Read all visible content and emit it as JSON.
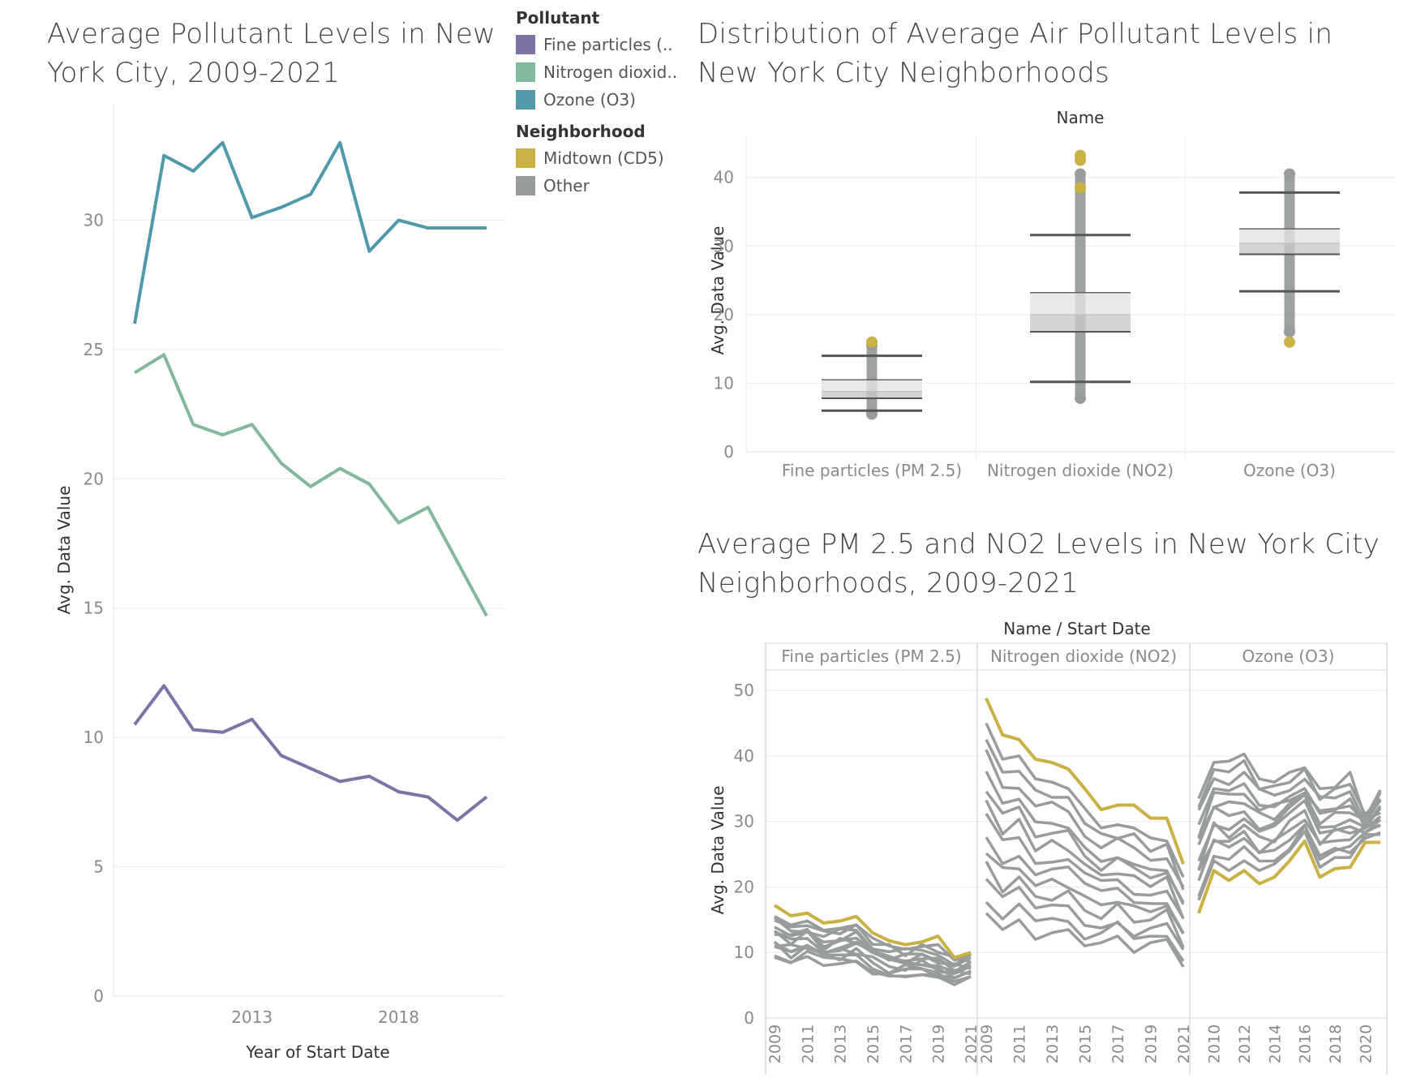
{
  "legend": {
    "pollutant_title": "Pollutant",
    "pollutant_items": [
      {
        "label": "Fine particles (..",
        "color": "#7f73a6"
      },
      {
        "label": "Nitrogen dioxid..",
        "color": "#82b99c"
      },
      {
        "label": "Ozone (O3)",
        "color": "#4f99ab"
      }
    ],
    "neighborhood_title": "Neighborhood",
    "neighborhood_items": [
      {
        "label": "Midtown (CD5)",
        "color": "#c9b143"
      },
      {
        "label": "Other",
        "color": "#999c9d"
      }
    ]
  },
  "chart_data": [
    {
      "type": "line",
      "title": "Average Pollutant Levels in New York City, 2009-2021",
      "xlabel": "Year of Start Date",
      "ylabel": "Avg. Data Value",
      "x": [
        2009,
        2010,
        2011,
        2012,
        2013,
        2014,
        2015,
        2016,
        2017,
        2018,
        2019,
        2020,
        2021
      ],
      "x_ticks": [
        "2013",
        "2018"
      ],
      "y_ticks": [
        "0",
        "5",
        "10",
        "15",
        "20",
        "25",
        "30"
      ],
      "ylim": [
        0,
        34.5
      ],
      "grid": true,
      "series": [
        {
          "name": "Ozone (O3)",
          "color": "#4f99ab",
          "values": [
            26.0,
            32.5,
            31.9,
            33.0,
            30.1,
            30.5,
            31.0,
            33.0,
            28.8,
            30.0,
            29.7,
            29.7,
            29.7
          ]
        },
        {
          "name": "Nitrogen dioxide (NO2)",
          "color": "#82b99c",
          "values": [
            24.1,
            24.8,
            22.1,
            21.7,
            22.1,
            20.6,
            19.7,
            20.4,
            19.8,
            18.3,
            18.9,
            16.8,
            14.7
          ]
        },
        {
          "name": "Fine particles (PM 2.5)",
          "color": "#7f73a6",
          "values": [
            10.5,
            12.0,
            10.3,
            10.2,
            10.7,
            9.3,
            8.8,
            8.3,
            8.5,
            7.9,
            7.7,
            6.8,
            7.7
          ]
        }
      ]
    },
    {
      "type": "box",
      "title": "Distribution of Average Air Pollutant Levels in New York City Neighborhoods",
      "xlabel": "Name",
      "ylabel": "Avg. Data Value",
      "categories": [
        "Fine particles (PM 2.5)",
        "Nitrogen dioxide (NO2)",
        "Ozone (O3)"
      ],
      "y_ticks": [
        "0",
        "10",
        "20",
        "30",
        "40"
      ],
      "ylim": [
        0,
        46
      ],
      "boxes": [
        {
          "whisker_low": 6.0,
          "q1": 7.8,
          "median": 8.8,
          "q3": 10.5,
          "whisker_high": 14.0,
          "min": 5.5,
          "max": 15.5,
          "midtown_points": [
            16.0
          ]
        },
        {
          "whisker_low": 10.2,
          "q1": 17.5,
          "median": 20.0,
          "q3": 23.2,
          "whisker_high": 31.6,
          "min": 7.8,
          "max": 40.5,
          "midtown_points": [
            43.2,
            42.5,
            38.5
          ]
        },
        {
          "whisker_low": 23.4,
          "q1": 28.8,
          "median": 30.4,
          "q3": 32.5,
          "whisker_high": 37.8,
          "min": 17.5,
          "max": 40.5,
          "midtown_points": [
            16.0
          ]
        }
      ]
    },
    {
      "type": "line",
      "title": "Average PM 2.5 and NO2 Levels in New York City Neighborhoods, 2009-2021",
      "header": "Name / Start Date",
      "ylabel": "Avg. Data Value",
      "y_ticks": [
        "0",
        "10",
        "20",
        "30",
        "40",
        "50"
      ],
      "ylim": [
        0,
        52
      ],
      "panels": [
        {
          "name": "Fine particles (PM 2.5)",
          "x": [
            2009,
            2010,
            2011,
            2012,
            2013,
            2014,
            2015,
            2016,
            2017,
            2018,
            2019,
            2020,
            2021
          ],
          "x_ticks": [
            "2009",
            "2011",
            "2013",
            "2015",
            "2017",
            "2019",
            "2021"
          ],
          "midtown": [
            17.2,
            15.6,
            16.0,
            14.5,
            14.8,
            15.5,
            13.0,
            11.8,
            11.2,
            11.6,
            12.5,
            9.2,
            10.0
          ],
          "others_high": [
            15.5,
            14.2,
            14.8,
            13.4,
            13.7,
            14.2,
            12.2,
            11.0,
            10.5,
            10.9,
            11.2,
            8.8,
            9.6
          ],
          "others_low": [
            9.5,
            8.5,
            9.4,
            8.0,
            8.3,
            8.7,
            7.0,
            6.4,
            6.4,
            6.6,
            6.2,
            5.6,
            6.3
          ]
        },
        {
          "name": "Nitrogen dioxide (NO2)",
          "x": [
            2009,
            2010,
            2011,
            2012,
            2013,
            2014,
            2015,
            2016,
            2017,
            2018,
            2019,
            2020,
            2021
          ],
          "x_ticks": [
            "2009",
            "2011",
            "2013",
            "2015",
            "2017",
            "2019",
            "2021"
          ],
          "midtown": [
            48.8,
            43.2,
            42.5,
            39.5,
            39.0,
            38.0,
            35.0,
            31.8,
            32.5,
            32.5,
            30.5,
            30.5,
            23.5
          ],
          "others_high": [
            45.0,
            39.5,
            40.0,
            36.5,
            36.0,
            35.0,
            32.0,
            29.0,
            29.5,
            29.0,
            27.5,
            27.0,
            21.5
          ],
          "others_low": [
            16.0,
            13.5,
            15.0,
            12.0,
            13.0,
            13.5,
            11.0,
            11.5,
            12.5,
            10.0,
            11.5,
            12.0,
            7.8
          ]
        },
        {
          "name": "Ozone (O3)",
          "x": [
            2009,
            2010,
            2011,
            2012,
            2013,
            2014,
            2015,
            2016,
            2017,
            2018,
            2019,
            2020,
            2021
          ],
          "x_ticks": [
            "2010",
            "2012",
            "2014",
            "2016",
            "2018",
            "2020"
          ],
          "midtown": [
            16.0,
            22.5,
            21.0,
            22.5,
            20.5,
            21.5,
            24.0,
            27.0,
            21.5,
            22.8,
            23.0,
            26.8,
            26.8
          ],
          "others_high": [
            33.5,
            39.0,
            39.2,
            40.3,
            36.5,
            36.0,
            37.5,
            38.2,
            35.0,
            35.2,
            37.5,
            30.5,
            34.8
          ],
          "others_low": [
            18.0,
            24.0,
            22.5,
            24.0,
            22.5,
            23.5,
            25.5,
            28.5,
            23.0,
            24.5,
            24.5,
            28.0,
            28.0
          ]
        }
      ]
    }
  ]
}
